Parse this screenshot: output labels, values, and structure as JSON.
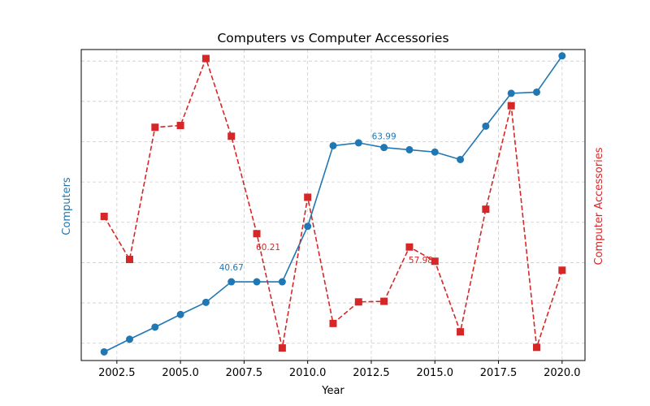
{
  "chart_data": {
    "type": "line",
    "title": "Computers vs Computer Accessories",
    "xlabel": "Year",
    "ylabel_left": "Computers",
    "ylabel_right": "Computer Accessories",
    "x": [
      2002,
      2003,
      2004,
      2005,
      2006,
      2007,
      2008,
      2009,
      2010,
      2011,
      2012,
      2013,
      2014,
      2015,
      2016,
      2017,
      2018,
      2019,
      2020
    ],
    "xticks": [
      2002.5,
      2005.0,
      2007.5,
      2010.0,
      2012.5,
      2015.0,
      2017.5,
      2020.0
    ],
    "xtick_labels": [
      "2002.5",
      "2005.0",
      "2007.5",
      "2010.0",
      "2012.5",
      "2015.0",
      "2017.5",
      "2020.0"
    ],
    "xlim": [
      2001.1,
      2020.9
    ],
    "grid": true,
    "tick_labels_y": "hidden",
    "series": [
      {
        "name": "Computers",
        "axis": "left",
        "color": "#1f77b4",
        "style": "solid",
        "marker": "circle",
        "values": [
          28.5,
          30.7,
          32.8,
          35.0,
          37.1,
          40.67,
          40.67,
          40.67,
          50.3,
          64.3,
          64.8,
          63.99,
          63.6,
          63.2,
          61.9,
          67.7,
          73.4,
          73.6,
          79.9
        ],
        "ylim": [
          27.0,
          81.0
        ]
      },
      {
        "name": "Computer Accessories",
        "axis": "right",
        "color": "#d62728",
        "style": "dashed",
        "marker": "square",
        "values": [
          63.1,
          55.9,
          78.0,
          78.3,
          89.5,
          76.5,
          60.21,
          41.1,
          66.3,
          45.2,
          48.8,
          48.9,
          57.98,
          55.6,
          43.8,
          64.3,
          81.6,
          41.2,
          54.1
        ],
        "ylim": [
          39.0,
          91.0
        ]
      }
    ],
    "annotations": [
      {
        "series": 0,
        "index": 5,
        "text": "40.67"
      },
      {
        "series": 0,
        "index": 11,
        "text": "63.99"
      },
      {
        "series": 1,
        "index": 6,
        "text": "60.21"
      },
      {
        "series": 1,
        "index": 12,
        "text": "57.98"
      }
    ]
  }
}
